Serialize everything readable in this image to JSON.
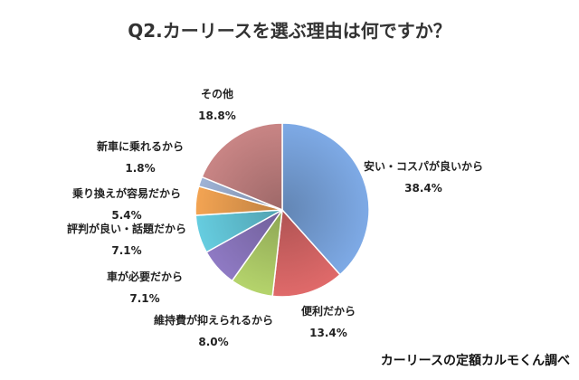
{
  "chart_data": {
    "type": "pie",
    "title": "Q2.カーリースを選ぶ理由は何ですか？",
    "slices": [
      {
        "label": "安い・コスパが良いから",
        "value": 38.4,
        "value_label": "38.4%",
        "color": "#7eaae6"
      },
      {
        "label": "便利だから",
        "value": 13.4,
        "value_label": "13.4%",
        "color": "#e06a6a"
      },
      {
        "label": "維持費が抑えられるから",
        "value": 8.0,
        "value_label": "8.0%",
        "color": "#b5d46c"
      },
      {
        "label": "車が必要だから",
        "value": 7.1,
        "value_label": "7.1%",
        "color": "#8f7ac4"
      },
      {
        "label": "評判が良い・話題だから",
        "value": 7.1,
        "value_label": "7.1%",
        "color": "#66cde0"
      },
      {
        "label": "乗り換えが容易だから",
        "value": 5.4,
        "value_label": "5.4%",
        "color": "#f3a453"
      },
      {
        "label": "新車に乗れるから",
        "value": 1.8,
        "value_label": "1.8%",
        "color": "#9fb3d6"
      },
      {
        "label": "その他",
        "value": 18.8,
        "value_label": "18.8%",
        "color": "#c98585"
      }
    ]
  },
  "credit": "カーリースの定額カルモくん調べ"
}
